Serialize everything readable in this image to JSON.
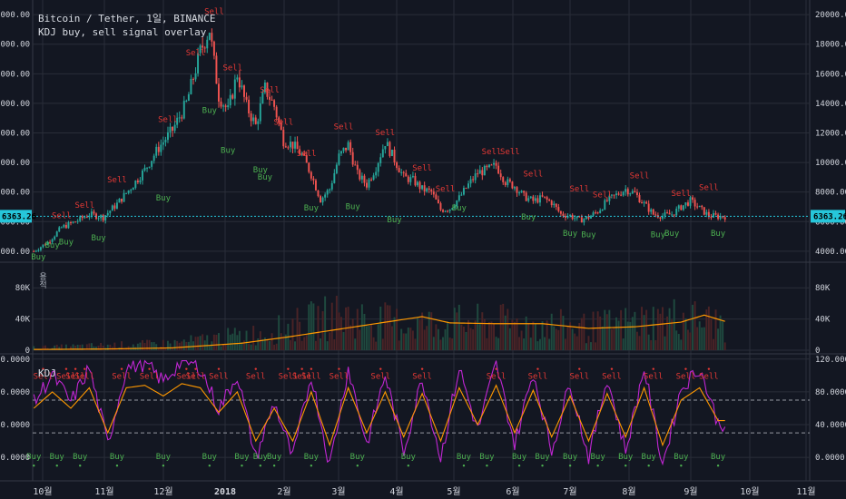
{
  "header": {
    "symbol_line": "Bitcoin / Tether, 1일, BINANCE",
    "study_line": "KDJ buy, sell signal overlay"
  },
  "volume_label": "용적",
  "kdj_label": "KDJ",
  "current_price_label": "6363.26",
  "colors": {
    "background": "#131722",
    "grid": "#2a2e39",
    "up": "#26a69a",
    "down": "#ef5350",
    "buy": "#4caf50",
    "sell": "#e53935",
    "volume_ma": "#ff9800",
    "k_line": "#ff9800",
    "j_line": "#c026d3",
    "price_line": "#26c6da",
    "axis_text": "#d1d4dc"
  },
  "chart_data": {
    "type": "candlestick",
    "price_axis": {
      "ticks": [
        "4000.00",
        "6000.00",
        "8000.00",
        "10000.00",
        "12000.00",
        "14000.00",
        "16000.00",
        "18000.00",
        "20000.00"
      ],
      "ylim": [
        3500,
        20500
      ]
    },
    "volume_axis": {
      "ticks": [
        "0",
        "40K",
        "80K"
      ],
      "ylim": [
        0,
        100000
      ]
    },
    "kdj_axis": {
      "ticks": [
        "0.0000",
        "40.0000",
        "80.0000",
        "120.0000"
      ],
      "ylim": [
        -12,
        122
      ],
      "bands": [
        30,
        70
      ]
    },
    "time_axis": {
      "ticks": [
        "10월",
        "11월",
        "12월",
        "2018",
        "2월",
        "3월",
        "4월",
        "5월",
        "6월",
        "7월",
        "8월",
        "9월",
        "10월",
        "11월"
      ]
    },
    "current_price": 6363.26,
    "price_anchors": [
      [
        0,
        4000
      ],
      [
        6,
        4600
      ],
      [
        12,
        5600
      ],
      [
        18,
        6000
      ],
      [
        24,
        6500
      ],
      [
        30,
        6300
      ],
      [
        36,
        7200
      ],
      [
        42,
        8300
      ],
      [
        48,
        9500
      ],
      [
        54,
        11000
      ],
      [
        60,
        12200
      ],
      [
        66,
        14000
      ],
      [
        72,
        17500
      ],
      [
        76,
        19000
      ],
      [
        80,
        14500
      ],
      [
        84,
        13500
      ],
      [
        88,
        16000
      ],
      [
        92,
        13800
      ],
      [
        96,
        12500
      ],
      [
        100,
        15000
      ],
      [
        104,
        13800
      ],
      [
        108,
        11500
      ],
      [
        112,
        11200
      ],
      [
        116,
        10500
      ],
      [
        120,
        9200
      ],
      [
        124,
        7500
      ],
      [
        128,
        8200
      ],
      [
        132,
        10400
      ],
      [
        136,
        11200
      ],
      [
        140,
        9200
      ],
      [
        144,
        8500
      ],
      [
        148,
        9700
      ],
      [
        152,
        11400
      ],
      [
        156,
        10200
      ],
      [
        160,
        9000
      ],
      [
        164,
        8800
      ],
      [
        168,
        8200
      ],
      [
        172,
        8000
      ],
      [
        176,
        6800
      ],
      [
        180,
        6900
      ],
      [
        184,
        7600
      ],
      [
        188,
        8500
      ],
      [
        192,
        9300
      ],
      [
        196,
        9500
      ],
      [
        200,
        9800
      ],
      [
        204,
        8700
      ],
      [
        208,
        8400
      ],
      [
        212,
        7700
      ],
      [
        216,
        7400
      ],
      [
        220,
        7600
      ],
      [
        224,
        7300
      ],
      [
        228,
        6500
      ],
      [
        232,
        6400
      ],
      [
        236,
        6100
      ],
      [
        240,
        6300
      ],
      [
        244,
        6700
      ],
      [
        248,
        7400
      ],
      [
        252,
        7800
      ],
      [
        256,
        8200
      ],
      [
        260,
        7900
      ],
      [
        264,
        7200
      ],
      [
        268,
        6500
      ],
      [
        272,
        6400
      ],
      [
        276,
        6500
      ],
      [
        280,
        7000
      ],
      [
        284,
        7400
      ],
      [
        288,
        6900
      ],
      [
        292,
        6400
      ],
      [
        296,
        6350
      ],
      [
        298,
        6363
      ]
    ],
    "kdj_k_anchors": [
      [
        0,
        60
      ],
      [
        8,
        80
      ],
      [
        16,
        60
      ],
      [
        24,
        85
      ],
      [
        32,
        30
      ],
      [
        40,
        85
      ],
      [
        48,
        88
      ],
      [
        56,
        75
      ],
      [
        64,
        90
      ],
      [
        72,
        85
      ],
      [
        80,
        55
      ],
      [
        88,
        80
      ],
      [
        96,
        20
      ],
      [
        104,
        60
      ],
      [
        112,
        20
      ],
      [
        120,
        80
      ],
      [
        128,
        15
      ],
      [
        136,
        85
      ],
      [
        144,
        30
      ],
      [
        152,
        80
      ],
      [
        160,
        25
      ],
      [
        168,
        78
      ],
      [
        176,
        20
      ],
      [
        184,
        85
      ],
      [
        192,
        40
      ],
      [
        200,
        88
      ],
      [
        208,
        30
      ],
      [
        216,
        82
      ],
      [
        224,
        25
      ],
      [
        232,
        75
      ],
      [
        240,
        20
      ],
      [
        248,
        78
      ],
      [
        256,
        25
      ],
      [
        264,
        85
      ],
      [
        272,
        15
      ],
      [
        280,
        70
      ],
      [
        288,
        85
      ],
      [
        296,
        45
      ],
      [
        298,
        45
      ]
    ],
    "signals": [
      {
        "type": "Sell",
        "i": 12,
        "price": 6000
      },
      {
        "type": "Sell",
        "i": 22,
        "price": 6700
      },
      {
        "type": "Sell",
        "i": 36,
        "price": 8400
      },
      {
        "type": "Sell",
        "i": 58,
        "price": 12500
      },
      {
        "type": "Sell",
        "i": 70,
        "price": 17000
      },
      {
        "type": "Sell",
        "i": 78,
        "price": 19800
      },
      {
        "type": "Sell",
        "i": 86,
        "price": 16000
      },
      {
        "type": "Sell",
        "i": 102,
        "price": 14500
      },
      {
        "type": "Sell",
        "i": 108,
        "price": 12300
      },
      {
        "type": "Sell",
        "i": 118,
        "price": 10200
      },
      {
        "type": "Sell",
        "i": 134,
        "price": 12000
      },
      {
        "type": "Sell",
        "i": 152,
        "price": 11600
      },
      {
        "type": "Sell",
        "i": 168,
        "price": 9200
      },
      {
        "type": "Sell",
        "i": 178,
        "price": 7800
      },
      {
        "type": "Sell",
        "i": 198,
        "price": 10300
      },
      {
        "type": "Sell",
        "i": 206,
        "price": 10300
      },
      {
        "type": "Sell",
        "i": 216,
        "price": 8800
      },
      {
        "type": "Sell",
        "i": 236,
        "price": 7800
      },
      {
        "type": "Sell",
        "i": 246,
        "price": 7400
      },
      {
        "type": "Sell",
        "i": 262,
        "price": 8700
      },
      {
        "type": "Sell",
        "i": 280,
        "price": 7500
      },
      {
        "type": "Sell",
        "i": 292,
        "price": 7900
      },
      {
        "type": "Buy",
        "i": 2,
        "price": 4300
      },
      {
        "type": "Buy",
        "i": 8,
        "price": 5100
      },
      {
        "type": "Buy",
        "i": 14,
        "price": 5300
      },
      {
        "type": "Buy",
        "i": 28,
        "price": 5600
      },
      {
        "type": "Buy",
        "i": 56,
        "price": 8300
      },
      {
        "type": "Buy",
        "i": 76,
        "price": 14200
      },
      {
        "type": "Buy",
        "i": 84,
        "price": 11500
      },
      {
        "type": "Buy",
        "i": 98,
        "price": 10200
      },
      {
        "type": "Buy",
        "i": 100,
        "price": 9700
      },
      {
        "type": "Buy",
        "i": 120,
        "price": 7600
      },
      {
        "type": "Buy",
        "i": 138,
        "price": 7700
      },
      {
        "type": "Buy",
        "i": 156,
        "price": 6800
      },
      {
        "type": "Buy",
        "i": 184,
        "price": 7600
      },
      {
        "type": "Buy",
        "i": 214,
        "price": 7000
      },
      {
        "type": "Buy",
        "i": 232,
        "price": 5900
      },
      {
        "type": "Buy",
        "i": 240,
        "price": 5800
      },
      {
        "type": "Buy",
        "i": 270,
        "price": 5800
      },
      {
        "type": "Buy",
        "i": 276,
        "price": 5900
      },
      {
        "type": "Buy",
        "i": 296,
        "price": 5900
      }
    ],
    "kdj_buy_x": [
      0,
      10,
      20,
      36,
      56,
      76,
      90,
      98,
      104,
      120,
      140,
      162,
      186,
      196,
      210,
      220,
      232,
      244,
      256,
      266,
      280,
      296
    ],
    "kdj_sell_x": [
      4,
      14,
      18,
      22,
      38,
      50,
      66,
      70,
      80,
      96,
      110,
      116,
      120,
      132,
      150,
      168,
      200,
      218,
      236,
      250,
      268,
      282,
      292
    ]
  }
}
